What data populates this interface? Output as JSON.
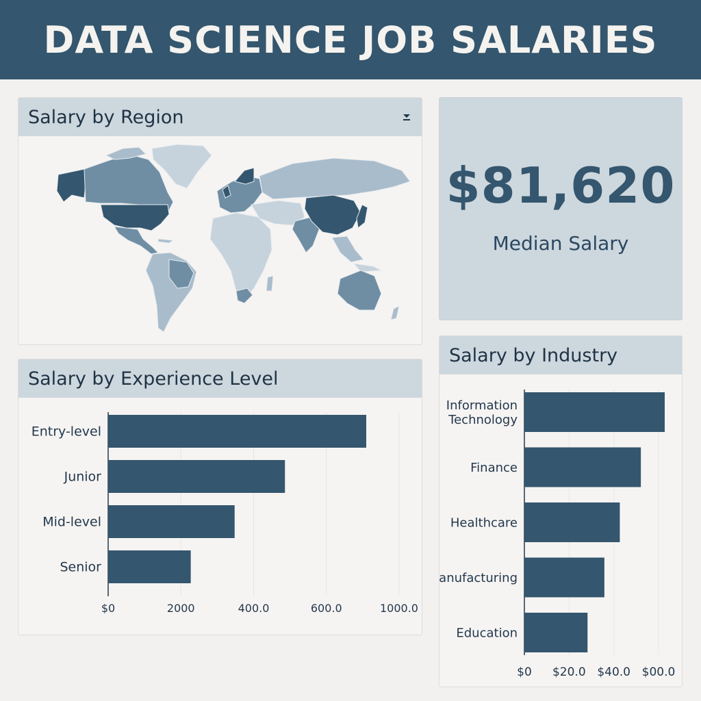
{
  "header": {
    "title": "DATA SCIENCE JOB SALARIES"
  },
  "region_panel": {
    "title": "Salary by Region",
    "dropdown_icon": "chevron-down-icon",
    "colors": {
      "high": "#34566e",
      "mid": "#6f8ea4",
      "low": "#a9bccb",
      "lowest": "#c6d3dc",
      "land_outline": "#d6dee4"
    }
  },
  "kpi": {
    "value": "$81,620",
    "label": "Median Salary"
  },
  "experience_panel": {
    "title": "Salary by Experience Level"
  },
  "industry_panel": {
    "title": "Salary by Industry"
  },
  "bar_color": "#34566e",
  "chart_data": [
    {
      "type": "bar",
      "orientation": "horizontal",
      "title": "Salary by Experience Level",
      "categories": [
        "Entry-level",
        "Junior",
        "Mid-level",
        "Senior"
      ],
      "values": [
        1.0,
        0.685,
        0.49,
        0.32
      ],
      "x_tick_labels": [
        "$0",
        "2000",
        "400.0",
        "600.0",
        "1000.0"
      ],
      "grid": true
    },
    {
      "type": "bar",
      "orientation": "horizontal",
      "title": "Salary by Industry",
      "categories": [
        "Information Technology",
        "Finance",
        "Healthcare",
        "Manufacturing",
        "Education"
      ],
      "values": [
        1.0,
        0.83,
        0.68,
        0.57,
        0.45
      ],
      "x_tick_labels": [
        "$0",
        "$20.0",
        "$40.0",
        "$00.0"
      ],
      "grid": true
    }
  ]
}
